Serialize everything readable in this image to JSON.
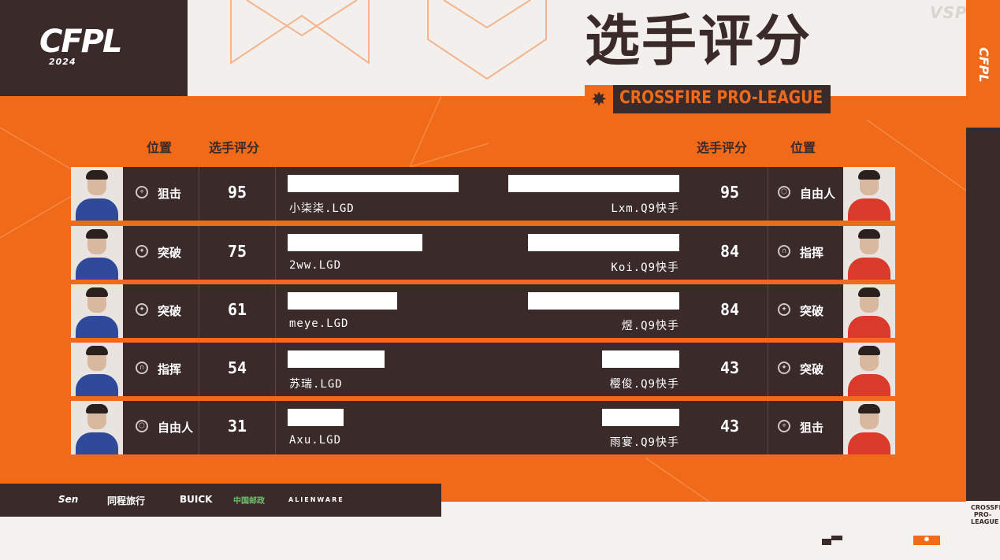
{
  "brand": {
    "logo": "CFPL",
    "year": "2024",
    "watermark": "VSPO",
    "strip_logo": "CFPL",
    "strip_bottom": "CROSSFIRE PRO-LEAGUE"
  },
  "title": "选手评分",
  "subtitle": "CROSSFIRE PRO-LEAGUE",
  "headers": {
    "left_position": "位置",
    "left_score": "选手评分",
    "right_score": "选手评分",
    "right_position": "位置"
  },
  "rows": [
    {
      "left": {
        "role": "狙击",
        "role_icon": "sniper-icon",
        "score": "95",
        "name": "小柒柒.LGD",
        "bar": 95
      },
      "right": {
        "role": "自由人",
        "role_icon": "free-role-icon",
        "score": "95",
        "name": "Lxm.Q9快手",
        "bar": 95
      }
    },
    {
      "left": {
        "role": "突破",
        "role_icon": "breach-icon",
        "score": "75",
        "name": "2ww.LGD",
        "bar": 75
      },
      "right": {
        "role": "指挥",
        "role_icon": "headset-icon",
        "score": "84",
        "name": "Koi.Q9快手",
        "bar": 84
      }
    },
    {
      "left": {
        "role": "突破",
        "role_icon": "breach-icon",
        "score": "61",
        "name": "meye.LGD",
        "bar": 61
      },
      "right": {
        "role": "突破",
        "role_icon": "breach-icon",
        "score": "84",
        "name": "煜.Q9快手",
        "bar": 84
      }
    },
    {
      "left": {
        "role": "指挥",
        "role_icon": "headset-icon",
        "score": "54",
        "name": "苏瑞.LGD",
        "bar": 54
      },
      "right": {
        "role": "突破",
        "role_icon": "breach-icon",
        "score": "43",
        "name": "樱俊.Q9快手",
        "bar": 43
      }
    },
    {
      "left": {
        "role": "自由人",
        "role_icon": "free-role-icon",
        "score": "31",
        "name": "Axu.LGD",
        "bar": 31
      },
      "right": {
        "role": "狙击",
        "role_icon": "sniper-icon",
        "score": "43",
        "name": "雨宴.Q9快手",
        "bar": 43
      }
    }
  ],
  "sponsors": [
    "Sen",
    "同程旅行",
    "BUICK",
    "中国邮政",
    "ALIENWARE"
  ],
  "colors": {
    "orange": "#f06a1a",
    "dark": "#3a2b2a",
    "light": "#f2efec",
    "lgd_jersey": "#2f4a9a",
    "q9_jersey": "#d93a2a"
  }
}
